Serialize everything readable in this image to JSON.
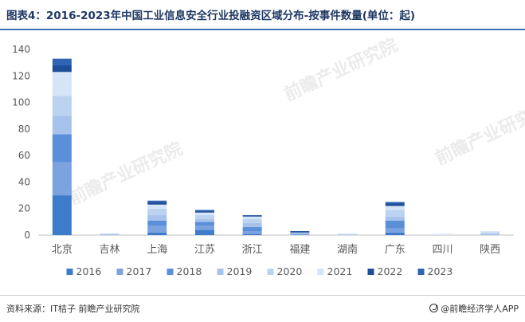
{
  "title": "图表4：2016-2023年中国工业信息安全行业投融资区域分布-按事件数量(单位：起)",
  "source": "资料来源：IT桔子 前瞻产业研究院",
  "brand": "@前瞻经济学人APP",
  "watermark": "前瞻产业研究院",
  "colors": {
    "s2016": "#3e7ccb",
    "s2017": "#7aa3e0",
    "s2018": "#5b8fd8",
    "s2019": "#a7c3ec",
    "s2020": "#bcd2f1",
    "s2021": "#d6e4f8",
    "s2022": "#1f4e99",
    "s2023": "#2f64b5",
    "axis": "#bfbfbf",
    "tick_text": "#595959",
    "title": "#1f3864"
  },
  "chart_data": {
    "type": "bar",
    "stacked": true,
    "categories": [
      "北京",
      "吉林",
      "上海",
      "江苏",
      "浙江",
      "福建",
      "湖南",
      "广东",
      "四川",
      "陕西"
    ],
    "series": [
      {
        "name": "2016",
        "color_key": "s2016",
        "values": [
          30,
          0,
          2,
          4,
          1,
          0,
          0,
          2,
          0,
          0
        ]
      },
      {
        "name": "2017",
        "color_key": "s2017",
        "values": [
          25,
          0,
          5,
          3,
          2,
          1,
          0,
          3,
          0,
          0
        ]
      },
      {
        "name": "2018",
        "color_key": "s2018",
        "values": [
          21,
          0,
          4,
          3,
          3,
          0,
          0,
          6,
          0,
          0
        ]
      },
      {
        "name": "2019",
        "color_key": "s2019",
        "values": [
          14,
          1,
          4,
          2,
          3,
          1,
          0,
          3,
          0,
          1
        ]
      },
      {
        "name": "2020",
        "color_key": "s2020",
        "values": [
          15,
          0,
          5,
          3,
          3,
          0,
          1,
          5,
          0,
          1
        ]
      },
      {
        "name": "2021",
        "color_key": "s2021",
        "values": [
          18,
          0,
          3,
          2,
          2,
          0,
          0,
          3,
          1,
          1
        ]
      },
      {
        "name": "2022",
        "color_key": "s2022",
        "values": [
          5,
          0,
          2,
          1,
          1,
          1,
          0,
          2,
          0,
          0
        ]
      },
      {
        "name": "2023",
        "color_key": "s2023",
        "values": [
          5,
          0,
          1,
          1,
          0,
          0,
          0,
          1,
          0,
          0
        ]
      }
    ],
    "yticks": [
      0,
      20,
      40,
      60,
      80,
      100,
      120,
      140
    ],
    "ylim": [
      0,
      140
    ],
    "grid": false,
    "legend_position": "bottom",
    "xlabel": "",
    "ylabel": ""
  }
}
